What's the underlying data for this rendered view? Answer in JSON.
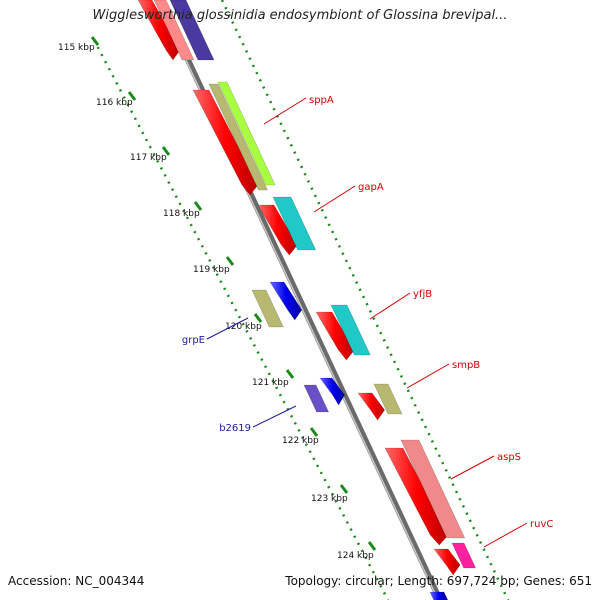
{
  "title": "Wigglesworthia glossinidia endosymbiont of Glossina brevipal...",
  "footer": {
    "accession": "Accession: NC_004344",
    "summary": "Topology: circular; Length: 697,724 bp; Genes: 651"
  },
  "ticks": [
    "115 kbp",
    "116 kbp",
    "117 kbp",
    "118 kbp",
    "119 kbp",
    "120 kbp",
    "121 kbp",
    "122 kbp",
    "123 kbp",
    "124 kbp"
  ],
  "gene_labels": [
    {
      "name": "sppA",
      "strand": "forward",
      "color": "#d40000"
    },
    {
      "name": "gapA",
      "strand": "forward",
      "color": "#d40000"
    },
    {
      "name": "yfjB",
      "strand": "forward",
      "color": "#d40000"
    },
    {
      "name": "smpB",
      "strand": "forward",
      "color": "#d40000"
    },
    {
      "name": "aspS",
      "strand": "forward",
      "color": "#d40000"
    },
    {
      "name": "ruvC",
      "strand": "forward",
      "color": "#d40000"
    },
    {
      "name": "grpE",
      "strand": "reverse",
      "color": "#1a1aa0"
    },
    {
      "name": "b2619",
      "strand": "reverse",
      "color": "#1a1aa0"
    }
  ],
  "colors": {
    "backbone": "#8a8a8a",
    "tick_green": "#1a8a1a",
    "cds_forward": "#ff0000",
    "cds_reverse": "#0000ff"
  }
}
